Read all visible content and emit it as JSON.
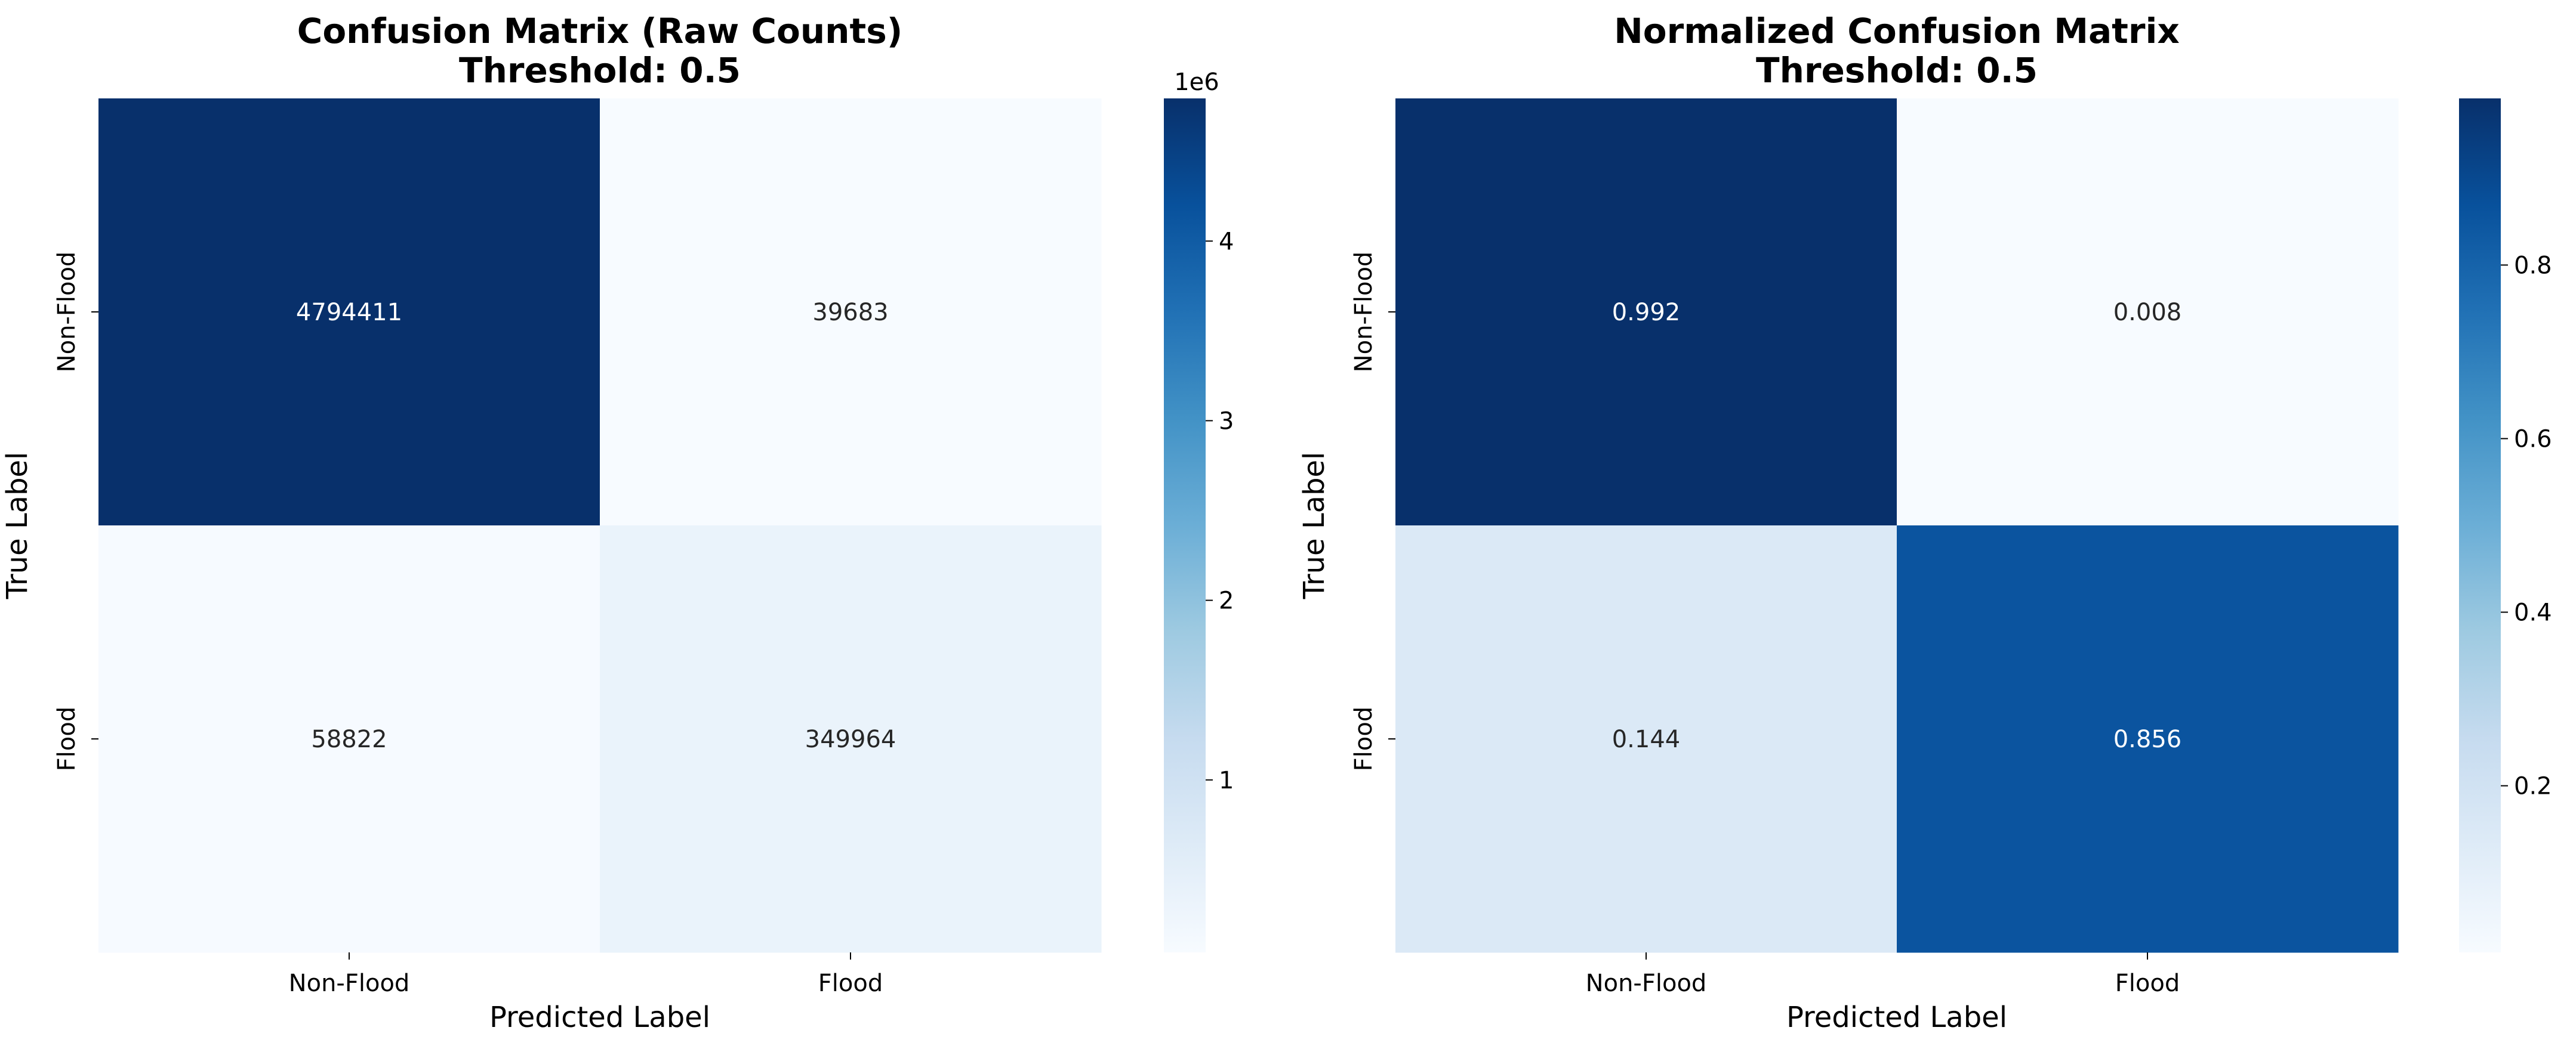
{
  "chart_data": [
    {
      "type": "heatmap",
      "title": "Confusion Matrix (Raw Counts)\nThreshold: 0.5",
      "xlabel": "Predicted Label",
      "ylabel": "True Label",
      "x_categories": [
        "Non-Flood",
        "Flood"
      ],
      "y_categories": [
        "Non-Flood",
        "Flood"
      ],
      "values": [
        [
          4794411,
          39683
        ],
        [
          58822,
          349964
        ]
      ],
      "annotations": [
        [
          "4794411",
          "39683"
        ],
        [
          "58822",
          "349964"
        ]
      ],
      "colormap": "Blues",
      "colorbar": {
        "vmin": 39683,
        "vmax": 4794411,
        "ticks": [
          1000000,
          2000000,
          3000000,
          4000000
        ],
        "tick_labels": [
          "1",
          "2",
          "3",
          "4"
        ],
        "offset_label": "1e6"
      }
    },
    {
      "type": "heatmap",
      "title": "Normalized Confusion Matrix\nThreshold: 0.5",
      "xlabel": "Predicted Label",
      "ylabel": "True Label",
      "x_categories": [
        "Non-Flood",
        "Flood"
      ],
      "y_categories": [
        "Non-Flood",
        "Flood"
      ],
      "values": [
        [
          0.992,
          0.008
        ],
        [
          0.144,
          0.856
        ]
      ],
      "annotations": [
        [
          "0.992",
          "0.008"
        ],
        [
          "0.144",
          "0.856"
        ]
      ],
      "colormap": "Blues",
      "colorbar": {
        "vmin": 0.008,
        "vmax": 0.992,
        "ticks": [
          0.2,
          0.4,
          0.6,
          0.8
        ],
        "tick_labels": [
          "0.2",
          "0.4",
          "0.6",
          "0.8"
        ],
        "offset_label": ""
      }
    }
  ]
}
